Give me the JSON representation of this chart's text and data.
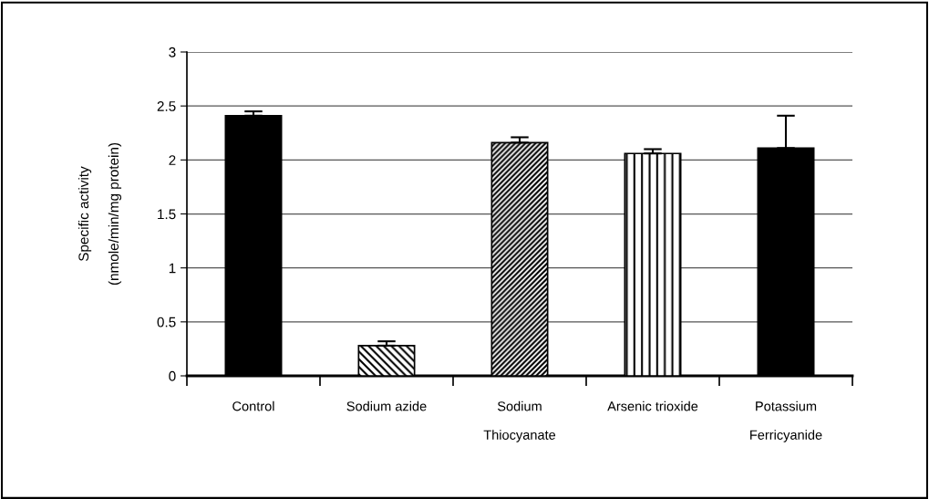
{
  "chart_data": {
    "type": "bar",
    "ylabel": "Specific activity\n\n(nmole/min/mg protein)",
    "categories": [
      "Control",
      "Sodium azide",
      "Sodium\n\nThiocyanate",
      "Arsenic trioxide",
      "Potassium\n\nFerricyanide"
    ],
    "values": [
      2.41,
      0.28,
      2.16,
      2.06,
      2.11
    ],
    "errors": [
      0.04,
      0.04,
      0.05,
      0.04,
      0.3
    ],
    "colors": [
      "#000000",
      "#000000",
      "#000000",
      "#000000",
      "#000000"
    ],
    "ylim": [
      0,
      3
    ],
    "yticks": [
      0,
      0.5,
      1,
      1.5,
      2,
      2.5,
      3
    ],
    "grid": "y",
    "legend": false
  }
}
